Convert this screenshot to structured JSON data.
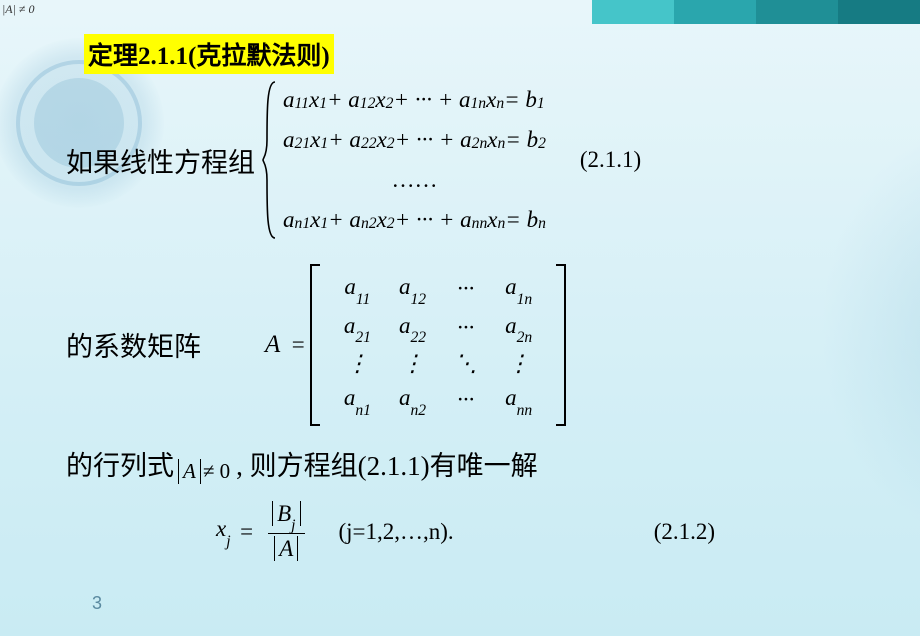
{
  "corner_note": "|A| ≠ 0",
  "accent_colors": [
    "#45c5c9",
    "#2aa6ad",
    "#1f8f96",
    "#167b83"
  ],
  "highlight": {
    "text": "定理2.1.1(克拉默法则)",
    "bg": "#ffff00"
  },
  "lead_in": "如果线性方程组",
  "system_label": "(2.1.1)",
  "system_rows": {
    "r1": "a<sub>11</sub>x<sub>1</sub> + a<sub>12</sub>x<sub>2</sub> + ··· + a<sub>1n</sub>x<sub>n</sub> = b<sub>1</sub>",
    "r2": "a<sub>21</sub>x<sub>1</sub> + a<sub>22</sub>x<sub>2</sub> + ··· + a<sub>2n</sub>x<sub>n</sub> = b<sub>2</sub>",
    "dots": "……",
    "rn": "a<sub>n1</sub>x<sub>1</sub> + a<sub>n2</sub>x<sub>2</sub> + ··· + a<sub>nn</sub>x<sub>n</sub> = b<sub>n</sub>"
  },
  "coef_label": "的系数矩阵",
  "matrix_lhs": "A",
  "matrix": {
    "r1": [
      "a<sub>11</sub>",
      "a<sub>12</sub>",
      "···",
      "a<sub>1n</sub>"
    ],
    "r2": [
      "a<sub>21</sub>",
      "a<sub>22</sub>",
      "···",
      "a<sub>2n</sub>"
    ],
    "r3": [
      "⋮",
      "⋮",
      "⋱",
      "⋮"
    ],
    "r4": [
      "a<sub>n1</sub>",
      "a<sub>n2</sub>",
      "···",
      "a<sub>nn</sub>"
    ]
  },
  "det_line": {
    "pre": "的行列式",
    "det": "A",
    "cond": "≠ 0",
    "post": ", 则方程组(2.1.1)有唯一解"
  },
  "solution": {
    "lhs": "x<sub>j</sub>",
    "num": "B<sub>j</sub>",
    "den": "A",
    "range": "(j=1,2,…,n).",
    "label": "(2.1.2)"
  },
  "page_number": "3"
}
